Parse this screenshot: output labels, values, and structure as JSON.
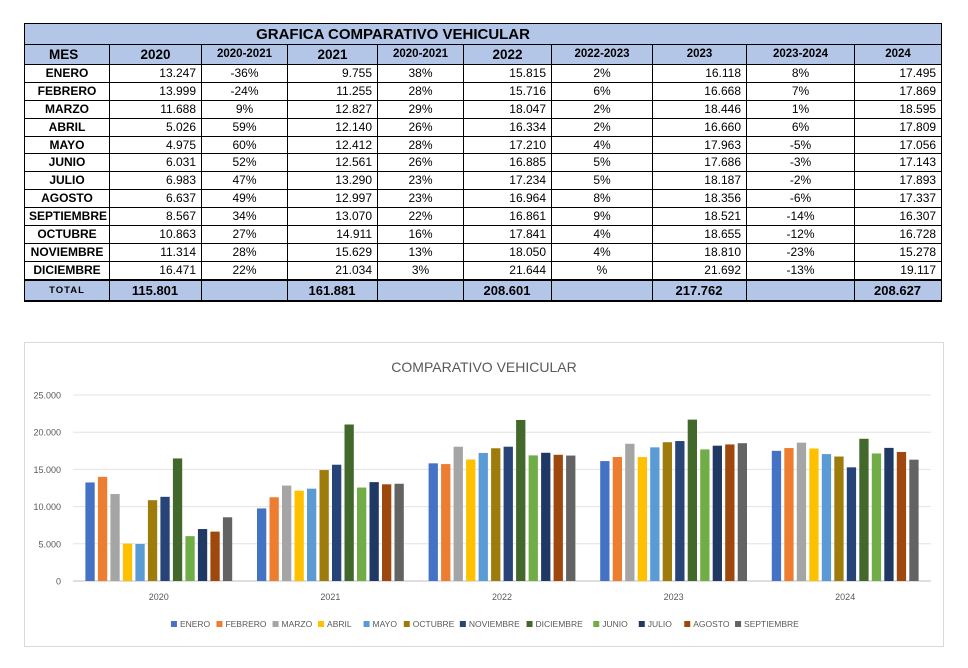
{
  "table": {
    "title": "GRAFICA COMPARATIVO VEHICULAR",
    "headers": [
      "MES",
      "2020",
      "2020-2021",
      "2021",
      "2020-2021",
      "2022",
      "2022-2023",
      "2023",
      "2023-2024",
      "2024"
    ],
    "rows": [
      [
        "ENERO",
        "13.247",
        "-36%",
        "9.755",
        "38%",
        "15.815",
        "2%",
        "16.118",
        "8%",
        "17.495"
      ],
      [
        "FEBRERO",
        "13.999",
        "-24%",
        "11.255",
        "28%",
        "15.716",
        "6%",
        "16.668",
        "7%",
        "17.869"
      ],
      [
        "MARZO",
        "11.688",
        "9%",
        "12.827",
        "29%",
        "18.047",
        "2%",
        "18.446",
        "1%",
        "18.595"
      ],
      [
        "ABRIL",
        "5.026",
        "59%",
        "12.140",
        "26%",
        "16.334",
        "2%",
        "16.660",
        "6%",
        "17.809"
      ],
      [
        "MAYO",
        "4.975",
        "60%",
        "12.412",
        "28%",
        "17.210",
        "4%",
        "17.963",
        "-5%",
        "17.056"
      ],
      [
        "JUNIO",
        "6.031",
        "52%",
        "12.561",
        "26%",
        "16.885",
        "5%",
        "17.686",
        "-3%",
        "17.143"
      ],
      [
        "JULIO",
        "6.983",
        "47%",
        "13.290",
        "23%",
        "17.234",
        "5%",
        "18.187",
        "-2%",
        "17.893"
      ],
      [
        "AGOSTO",
        "6.637",
        "49%",
        "12.997",
        "23%",
        "16.964",
        "8%",
        "18.356",
        "-6%",
        "17.337"
      ],
      [
        "SEPTIEMBRE",
        "8.567",
        "34%",
        "13.070",
        "22%",
        "16.861",
        "9%",
        "18.521",
        "-14%",
        "16.307"
      ],
      [
        "OCTUBRE",
        "10.863",
        "27%",
        "14.911",
        "16%",
        "17.841",
        "4%",
        "18.655",
        "-12%",
        "16.728"
      ],
      [
        "NOVIEMBRE",
        "11.314",
        "28%",
        "15.629",
        "13%",
        "18.050",
        "4%",
        "18.810",
        "-23%",
        "15.278"
      ],
      [
        "DICIEMBRE",
        "16.471",
        "22%",
        "21.034",
        "3%",
        "21.644",
        "%",
        "21.692",
        "-13%",
        "19.117"
      ]
    ],
    "total": [
      "TOTAL",
      "115.801",
      "",
      "161.881",
      "",
      "208.601",
      "",
      "217.762",
      "",
      "208.627"
    ]
  },
  "chart_data": {
    "type": "bar",
    "title": "COMPARATIVO VEHICULAR",
    "categories": [
      "2020",
      "2021",
      "2022",
      "2023",
      "2024"
    ],
    "ylim": [
      0,
      25000
    ],
    "yticks": [
      0,
      5000,
      10000,
      15000,
      20000,
      25000
    ],
    "ytick_labels": [
      "0",
      "5.000",
      "10.000",
      "15.000",
      "20.000",
      "25.000"
    ],
    "grid": true,
    "legend_position": "bottom",
    "series": [
      {
        "name": "ENERO",
        "color": "#4472c4",
        "values": [
          13247,
          9755,
          15815,
          16118,
          17495
        ]
      },
      {
        "name": "FEBRERO",
        "color": "#ed7d31",
        "values": [
          13999,
          11255,
          15716,
          16668,
          17869
        ]
      },
      {
        "name": "MARZO",
        "color": "#a5a5a5",
        "values": [
          11688,
          12827,
          18047,
          18446,
          18595
        ]
      },
      {
        "name": "ABRIL",
        "color": "#ffc000",
        "values": [
          5026,
          12140,
          16334,
          16660,
          17809
        ]
      },
      {
        "name": "MAYO",
        "color": "#5b9bd5",
        "values": [
          4975,
          12412,
          17210,
          17963,
          17056
        ]
      },
      {
        "name": "OCTUBRE",
        "color": "#9e7c0b",
        "values": [
          10863,
          14911,
          17841,
          18655,
          16728
        ]
      },
      {
        "name": "NOVIEMBRE",
        "color": "#264478",
        "values": [
          11314,
          15629,
          18050,
          18810,
          15278
        ]
      },
      {
        "name": "DICIEMBRE",
        "color": "#43682b",
        "values": [
          16471,
          21034,
          21644,
          21692,
          19117
        ]
      },
      {
        "name": "JUNIO",
        "color": "#70ad47",
        "values": [
          6031,
          12561,
          16885,
          17686,
          17143
        ]
      },
      {
        "name": "JULIO",
        "color": "#203864",
        "values": [
          6983,
          13290,
          17234,
          18187,
          17893
        ]
      },
      {
        "name": "AGOSTO",
        "color": "#9e480e",
        "values": [
          6637,
          12997,
          16964,
          18356,
          17337
        ]
      },
      {
        "name": "SEPTIEMBRE",
        "color": "#636363",
        "values": [
          8567,
          13070,
          16861,
          18521,
          16307
        ]
      }
    ]
  }
}
